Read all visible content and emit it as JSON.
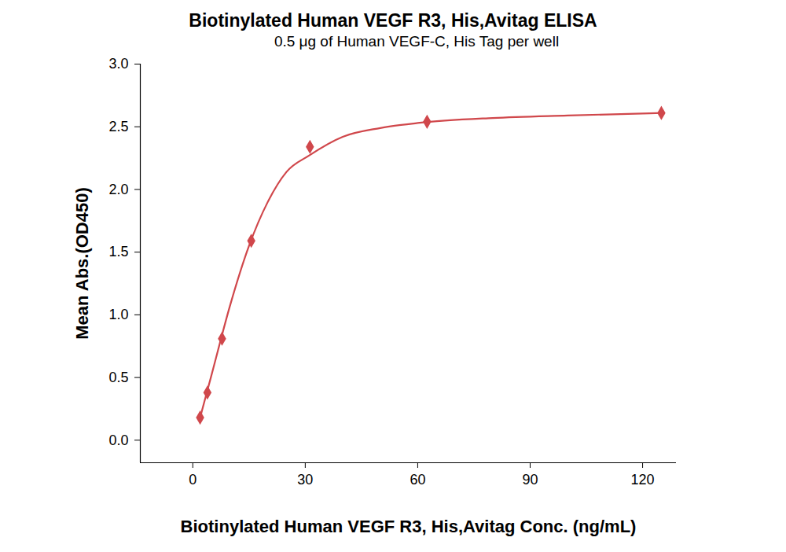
{
  "chart_data": {
    "type": "scatter",
    "title": "Biotinylated Human VEGF R3, His,Avitag ELISA",
    "subtitle": "0.5 μg of Human VEGF-C, His Tag per well",
    "x_label": "Biotinylated Human VEGF R3, His,Avitag Conc. (ng/mL)",
    "y_label": "Mean Abs.(OD450)",
    "series": [
      {
        "type": "line",
        "color": "#d0474b",
        "x": [
          1.95,
          5,
          10,
          15,
          20,
          25,
          31,
          40,
          50,
          60,
          80,
          100,
          125
        ],
        "values": [
          0.18,
          0.52,
          1.08,
          1.55,
          1.9,
          2.14,
          2.27,
          2.42,
          2.49,
          2.53,
          2.57,
          2.59,
          2.61
        ]
      },
      {
        "type": "scatter",
        "marker": "diamond",
        "color": "#d0474b",
        "x": [
          1.95,
          3.9,
          7.8,
          15.6,
          31.25,
          62.5,
          125
        ],
        "values": [
          0.18,
          0.38,
          0.81,
          1.59,
          2.34,
          2.54,
          2.61
        ]
      }
    ],
    "xlim": [
      -14,
      129
    ],
    "xticks": [
      0,
      30,
      60,
      90,
      120
    ],
    "ylim": [
      -0.18,
      3.0
    ],
    "yticks": [
      {
        "value": 0,
        "label": "0.0"
      },
      {
        "value": 0.5,
        "label": "0.5"
      },
      {
        "value": 1.0,
        "label": "1.0"
      },
      {
        "value": 1.5,
        "label": "1.5"
      },
      {
        "value": 2.0,
        "label": "2.0"
      },
      {
        "value": 2.5,
        "label": "2.5"
      },
      {
        "value": 3.0,
        "label": "3.0"
      }
    ],
    "grid": false
  }
}
